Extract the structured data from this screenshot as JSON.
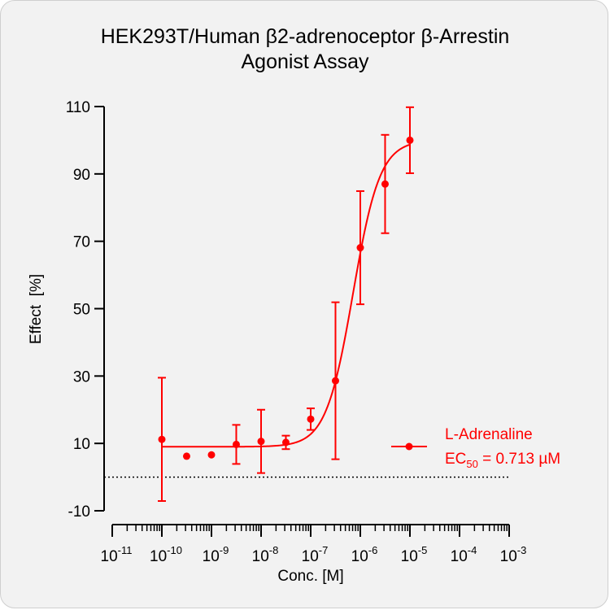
{
  "title_lines": [
    "HEK293T/Human β2-adrenoceptor β-Arrestin",
    "Agonist Assay"
  ],
  "colors": {
    "series": "#ff0000",
    "axis": "#000000",
    "background": "#f2f2f2"
  },
  "chart_data": {
    "type": "scatter",
    "title": "HEK293T/Human β2-adrenoceptor β-Arrestin Agonist Assay",
    "xlabel": "Conc. [M]",
    "ylabel": "Effect  [%]",
    "x_scale": "log",
    "xlim": [
      1e-11,
      0.001
    ],
    "ylim": [
      -10,
      110
    ],
    "yticks": [
      -10,
      10,
      30,
      50,
      70,
      90,
      110
    ],
    "xtick_exponents": [
      -11,
      -10,
      -9,
      -8,
      -7,
      -6,
      -5,
      -4,
      -3
    ],
    "baseline": 0,
    "series": [
      {
        "name": "L-Adrenaline",
        "ec50_label": "EC",
        "ec50_sub": "50",
        "ec50_value": " = 0.713 µM",
        "ec50_M": 7.13e-07,
        "fit": {
          "bottom": 9,
          "top": 100,
          "hill": 1.6
        },
        "points": [
          {
            "x": 1e-10,
            "y": 11.2,
            "err": 18.3
          },
          {
            "x": 3.16e-10,
            "y": 6.2,
            "err": 0
          },
          {
            "x": 1e-09,
            "y": 6.6,
            "err": 0
          },
          {
            "x": 3.16e-09,
            "y": 9.7,
            "err": 5.8
          },
          {
            "x": 1e-08,
            "y": 10.6,
            "err": 9.4
          },
          {
            "x": 3.16e-08,
            "y": 10.3,
            "err": 2.0
          },
          {
            "x": 1e-07,
            "y": 17.2,
            "err": 3.2
          },
          {
            "x": 3.16e-07,
            "y": 28.6,
            "err": 23.3
          },
          {
            "x": 1e-06,
            "y": 68.1,
            "err": 16.8
          },
          {
            "x": 3.16e-06,
            "y": 87.0,
            "err": 14.6
          },
          {
            "x": 1e-05,
            "y": 100.0,
            "err": 9.8
          }
        ]
      }
    ],
    "legend_position": "right"
  }
}
